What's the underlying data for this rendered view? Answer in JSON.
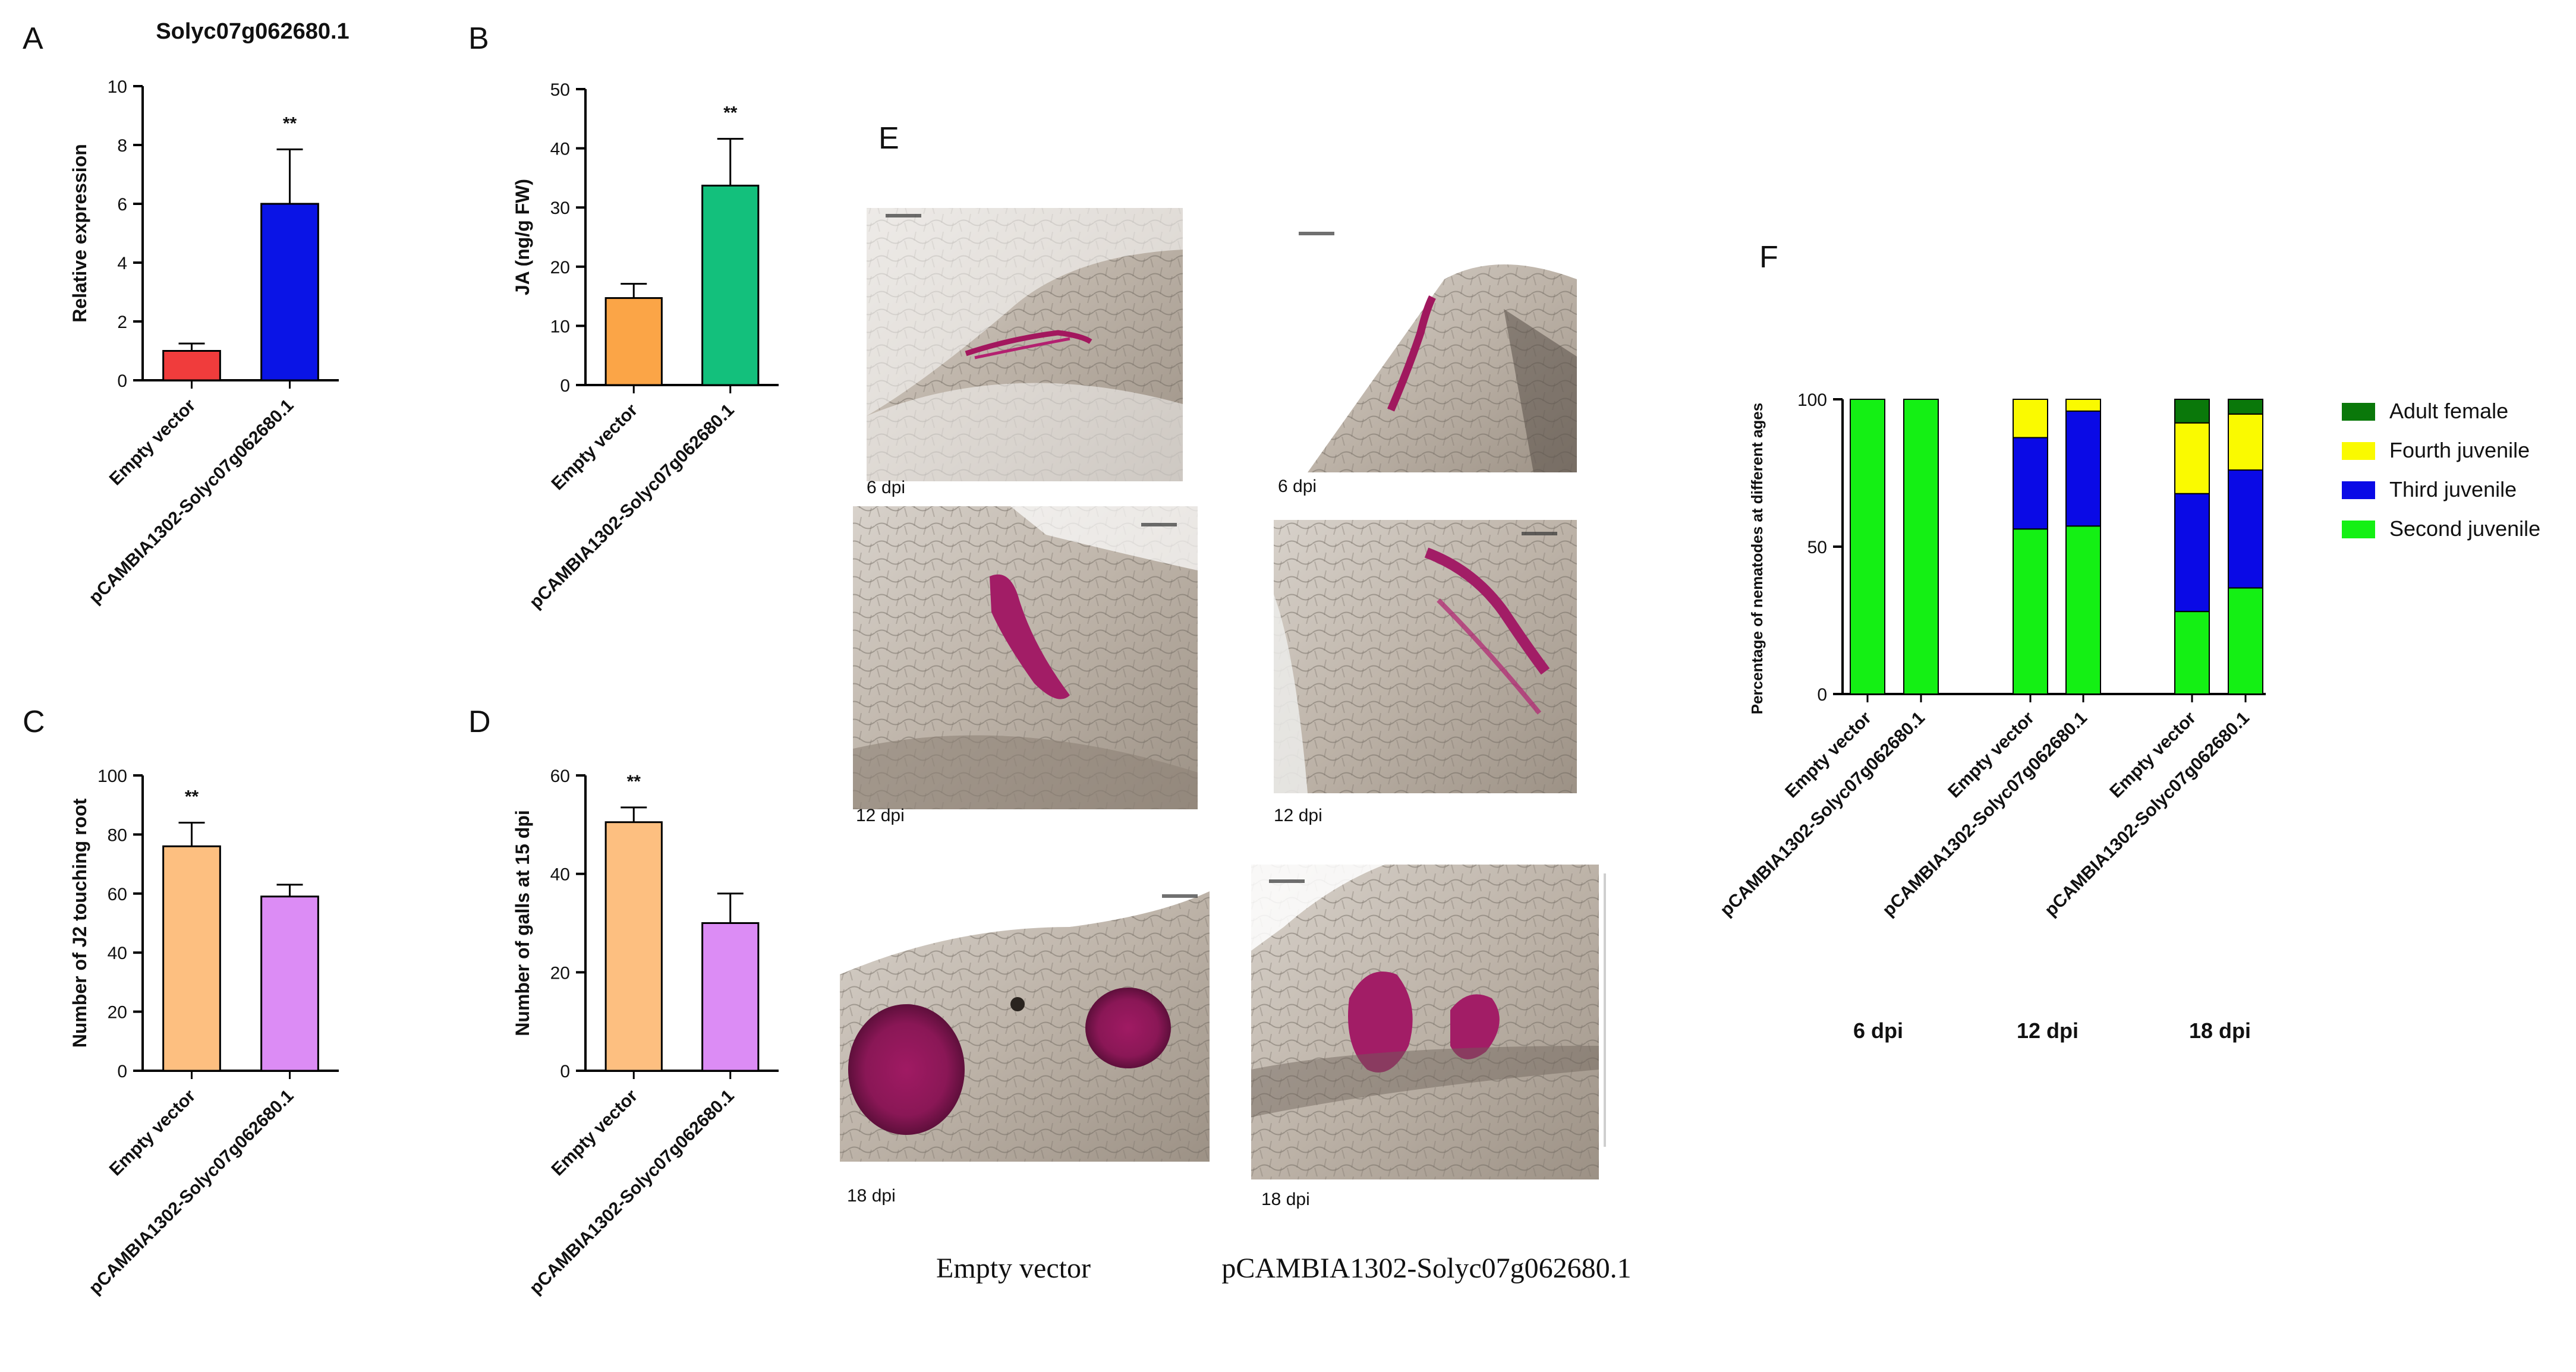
{
  "panel_letters": {
    "a": "A",
    "b": "B",
    "c": "C",
    "d": "D",
    "e": "E",
    "f": "F"
  },
  "chart_data": [
    {
      "panel": "A",
      "type": "bar",
      "title": "Solyc07g062680.1",
      "ylabel": "Relative expression",
      "ylim": [
        0,
        10
      ],
      "yticks": [
        0,
        2,
        4,
        6,
        8,
        10
      ],
      "categories": [
        "Empty vector",
        "pCAMBIA1302-Solyc07g062680.1"
      ],
      "values": [
        1.0,
        6.0
      ],
      "errors": [
        0.25,
        1.85
      ],
      "colors": [
        "#f03c3c",
        "#0a14e6"
      ],
      "significance": {
        "label": "**",
        "bar_index": 1
      }
    },
    {
      "panel": "B",
      "type": "bar",
      "ylabel": "JA (ng/g FW)",
      "ylim": [
        0,
        50
      ],
      "yticks": [
        0,
        10,
        20,
        30,
        40,
        50
      ],
      "categories": [
        "Empty vector",
        "pCAMBIA1302-Solyc07g062680.1"
      ],
      "values": [
        14.7,
        33.7
      ],
      "errors": [
        2.4,
        7.9
      ],
      "colors": [
        "#fba547",
        "#13c07c"
      ],
      "significance": {
        "label": "**",
        "bar_index": 1
      }
    },
    {
      "panel": "C",
      "type": "bar",
      "ylabel": "Number of J2 touching root",
      "ylim": [
        0,
        100
      ],
      "yticks": [
        0,
        20,
        40,
        60,
        80,
        100
      ],
      "categories": [
        "Empty vector",
        "pCAMBIA1302-Solyc07g062680.1"
      ],
      "values": [
        76,
        59
      ],
      "errors": [
        8,
        4
      ],
      "colors": [
        "#fdbf80",
        "#dc8cf5"
      ],
      "significance": {
        "label": "**",
        "bar_index": 0
      }
    },
    {
      "panel": "D",
      "type": "bar",
      "ylabel": "Number of galls at 15 dpi",
      "ylim": [
        0,
        60
      ],
      "yticks": [
        0,
        20,
        40,
        60
      ],
      "categories": [
        "Empty vector",
        "pCAMBIA1302-Solyc07g062680.1"
      ],
      "values": [
        50.5,
        30
      ],
      "errors": [
        3,
        6
      ],
      "colors": [
        "#fdbf80",
        "#dc8cf5"
      ],
      "significance": {
        "label": "**",
        "bar_index": 0
      }
    },
    {
      "panel": "F",
      "type": "bar",
      "stacked": true,
      "ylabel": "Percentage of nematodes at different ages",
      "ylim": [
        0,
        100
      ],
      "yticks": [
        0,
        50,
        100
      ],
      "categories": [
        "Empty vector",
        "pCAMBIA1302-Solyc07g062680.1",
        "Empty vector",
        "pCAMBIA1302-Solyc07g062680.1",
        "Empty vector",
        "pCAMBIA1302-Solyc07g062680.1"
      ],
      "groups": [
        "6 dpi",
        "12 dpi",
        "18 dpi"
      ],
      "series": [
        {
          "name": "Second juvenile",
          "color": "#14f014",
          "values": [
            100,
            100,
            56,
            57,
            28,
            36
          ]
        },
        {
          "name": "Third juvenile",
          "color": "#0a0ae6",
          "values": [
            0,
            0,
            31,
            39,
            40,
            40
          ]
        },
        {
          "name": "Fourth juvenile",
          "color": "#fafa00",
          "values": [
            0,
            0,
            13,
            4,
            24,
            19
          ]
        },
        {
          "name": "Adult female",
          "color": "#0a780a",
          "values": [
            0,
            0,
            0,
            0,
            8,
            5
          ]
        }
      ],
      "legend_order": [
        "Adult female",
        "Fourth juvenile",
        "Third juvenile",
        "Second juvenile"
      ],
      "legend": "right"
    }
  ],
  "micrographs": {
    "time_labels": [
      "6 dpi",
      "6 dpi",
      "12 dpi",
      "12 dpi",
      "18 dpi",
      "18 dpi"
    ],
    "columns": [
      "Empty vector",
      "pCAMBIA1302-Solyc07g062680.1"
    ]
  }
}
